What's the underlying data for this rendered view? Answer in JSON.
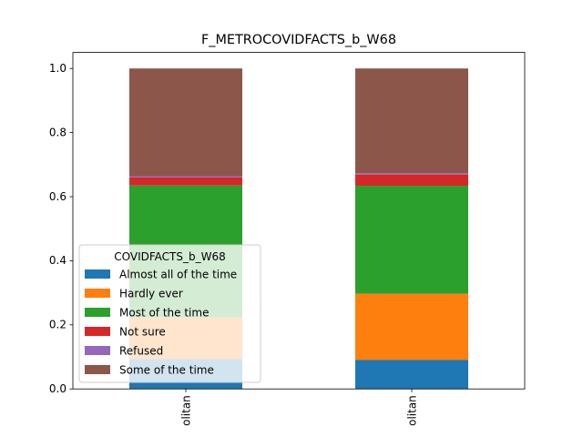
{
  "chart_data": {
    "type": "bar",
    "stacked": true,
    "title": "F_METROCOVIDFACTS_b_W68",
    "xlabel": "",
    "ylabel": "",
    "ylim": [
      0,
      1.05
    ],
    "yticks": [
      0.0,
      0.2,
      0.4,
      0.6,
      0.8,
      1.0
    ],
    "ytick_labels": [
      "0.0",
      "0.2",
      "0.4",
      "0.6",
      "0.8",
      "1.0"
    ],
    "categories": [
      "olitan",
      "olitan"
    ],
    "legend": {
      "title": "COVIDFACTS_b_W68",
      "placement": "lower-left"
    },
    "series": [
      {
        "name": "Almost all of the time",
        "color": "#1f77b4",
        "values": [
          0.093,
          0.091
        ]
      },
      {
        "name": "Hardly ever",
        "color": "#ff7f0e",
        "values": [
          0.13,
          0.206
        ]
      },
      {
        "name": "Most of the time",
        "color": "#2ca02c",
        "values": [
          0.412,
          0.337
        ]
      },
      {
        "name": "Not sure",
        "color": "#d62728",
        "values": [
          0.025,
          0.035
        ]
      },
      {
        "name": "Refused",
        "color": "#9467bd",
        "values": [
          0.004,
          0.004
        ]
      },
      {
        "name": "Some of the time",
        "color": "#8c564b",
        "values": [
          0.336,
          0.327
        ]
      }
    ]
  }
}
